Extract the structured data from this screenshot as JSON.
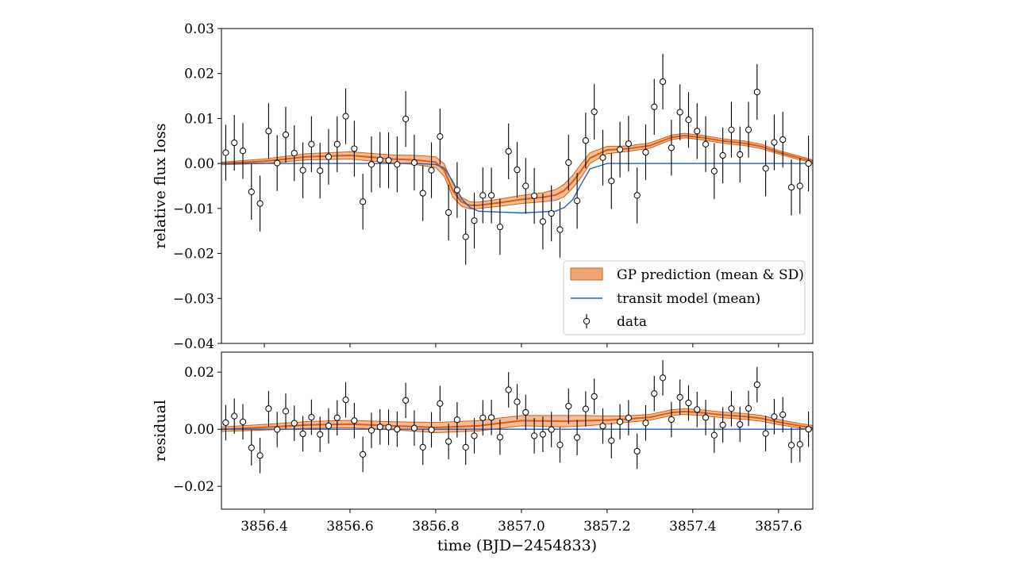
{
  "chart_data": [
    {
      "type": "scatter",
      "panel": "top",
      "ylabel": "relative flux loss",
      "xlim": [
        3856.3,
        3857.68
      ],
      "ylim": [
        -0.04,
        0.03
      ],
      "yticks": [
        -0.04,
        -0.03,
        -0.02,
        -0.01,
        0.0,
        0.01,
        0.02,
        0.03
      ],
      "ytick_labels": [
        "−0.04",
        "−0.03",
        "−0.02",
        "−0.01",
        "0.00",
        "0.01",
        "0.02",
        "0.03"
      ],
      "grid": false,
      "legend_position": "lower-right",
      "legend": [
        "GP prediction (mean & SD)",
        "transit model (mean)",
        "data"
      ],
      "colors": {
        "gp_line": "#d95f0e",
        "gp_band": "#f0a474",
        "transit": "#1f5fbf",
        "data": "#000000"
      },
      "series": [
        {
          "name": "data",
          "error": 0.0062,
          "x": [
            3856.31,
            3856.33,
            3856.35,
            3856.37,
            3856.39,
            3856.41,
            3856.43,
            3856.45,
            3856.47,
            3856.49,
            3856.51,
            3856.53,
            3856.55,
            3856.57,
            3856.59,
            3856.61,
            3856.63,
            3856.65,
            3856.67,
            3856.69,
            3856.71,
            3856.73,
            3856.75,
            3856.77,
            3856.79,
            3856.81,
            3856.83,
            3856.85,
            3856.87,
            3856.89,
            3856.91,
            3856.93,
            3856.95,
            3856.97,
            3856.99,
            3857.01,
            3857.03,
            3857.05,
            3857.07,
            3857.09,
            3857.11,
            3857.13,
            3857.15,
            3857.17,
            3857.19,
            3857.21,
            3857.23,
            3857.25,
            3857.27,
            3857.29,
            3857.31,
            3857.33,
            3857.35,
            3857.37,
            3857.39,
            3857.41,
            3857.43,
            3857.45,
            3857.47,
            3857.49,
            3857.51,
            3857.53,
            3857.55,
            3857.57,
            3857.59,
            3857.61,
            3857.63,
            3857.65,
            3857.67
          ],
          "values": [
            0.0024,
            0.0046,
            0.0028,
            -0.0063,
            -0.0089,
            0.0072,
            0.0001,
            0.0064,
            0.0023,
            -0.0015,
            0.0043,
            -0.0016,
            0.0015,
            0.0043,
            0.0105,
            0.0033,
            -0.0085,
            -0.0002,
            0.0008,
            0.0007,
            -0.0002,
            0.0099,
            0.0002,
            -0.0066,
            -0.0015,
            0.006,
            -0.0109,
            -0.0059,
            -0.0163,
            -0.0127,
            -0.0071,
            -0.0071,
            -0.0141,
            0.0027,
            -0.0014,
            -0.005,
            -0.0072,
            -0.0129,
            -0.0111,
            -0.0147,
            0.0002,
            -0.0083,
            0.0051,
            0.0115,
            0.0013,
            -0.0039,
            0.0031,
            0.0044,
            -0.0071,
            0.0025,
            0.0126,
            0.0182,
            0.0035,
            0.0114,
            0.0097,
            0.0072,
            0.0043,
            -0.0017,
            0.0018,
            0.0075,
            0.002,
            0.0075,
            0.0159,
            -0.0011,
            0.0047,
            0.0053,
            -0.0053,
            -0.005,
            0.0
          ]
        },
        {
          "name": "transit model (mean)",
          "x": [
            3856.3,
            3856.75,
            3856.8,
            3856.82,
            3856.84,
            3856.86,
            3856.88,
            3856.9,
            3857.0,
            3857.08,
            3857.1,
            3857.12,
            3857.14,
            3857.16,
            3857.2,
            3857.68
          ],
          "values": [
            0.0,
            0.0,
            -0.0002,
            -0.001,
            -0.004,
            -0.0078,
            -0.0098,
            -0.0106,
            -0.011,
            -0.0106,
            -0.0098,
            -0.008,
            -0.0045,
            -0.0012,
            0.0,
            0.0
          ]
        },
        {
          "name": "GP prediction (mean & SD)",
          "x": [
            3856.3,
            3856.4,
            3856.5,
            3856.6,
            3856.7,
            3856.75,
            3856.8,
            3856.82,
            3856.84,
            3856.86,
            3856.88,
            3856.9,
            3856.95,
            3857.0,
            3857.05,
            3857.08,
            3857.1,
            3857.12,
            3857.14,
            3857.16,
            3857.2,
            3857.25,
            3857.3,
            3857.35,
            3857.38,
            3857.42,
            3857.47,
            3857.52,
            3857.56,
            3857.6,
            3857.65,
            3857.68
          ],
          "values": [
            0.0,
            0.0005,
            0.0015,
            0.0018,
            0.001,
            0.0008,
            0.0003,
            -0.0015,
            -0.006,
            -0.0085,
            -0.0093,
            -0.0093,
            -0.0087,
            -0.008,
            -0.0075,
            -0.007,
            -0.006,
            -0.004,
            -0.0015,
            0.0012,
            0.003,
            0.0033,
            0.004,
            0.0058,
            0.0062,
            0.0058,
            0.005,
            0.0045,
            0.0038,
            0.0025,
            0.0012,
            0.0005
          ],
          "sd": [
            0.0003,
            0.0005,
            0.0007,
            0.0008,
            0.0009,
            0.001,
            0.0012,
            0.0014,
            0.0015,
            0.001,
            0.0008,
            0.0007,
            0.0008,
            0.0009,
            0.001,
            0.0012,
            0.0014,
            0.0014,
            0.0015,
            0.0012,
            0.0008,
            0.0006,
            0.0006,
            0.0005,
            0.0005,
            0.0005,
            0.0005,
            0.0005,
            0.0005,
            0.0004,
            0.0004,
            0.0003
          ]
        }
      ]
    },
    {
      "type": "scatter",
      "panel": "bottom",
      "ylabel": "residual",
      "xlabel": "time (BJD−2454833)",
      "xlim": [
        3856.3,
        3857.68
      ],
      "ylim": [
        -0.028,
        0.027
      ],
      "yticks": [
        -0.02,
        0.0,
        0.02
      ],
      "ytick_labels": [
        "−0.02",
        "0.00",
        "0.02"
      ],
      "xticks": [
        3856.4,
        3856.6,
        3856.8,
        3857.0,
        3857.2,
        3857.4,
        3857.6
      ],
      "xtick_labels": [
        "3856.4",
        "3856.6",
        "3856.8",
        "3857.0",
        "3857.2",
        "3857.4",
        "3857.6"
      ],
      "grid": false,
      "series": [
        {
          "name": "data",
          "error": 0.0062,
          "x": [
            3856.31,
            3856.33,
            3856.35,
            3856.37,
            3856.39,
            3856.41,
            3856.43,
            3856.45,
            3856.47,
            3856.49,
            3856.51,
            3856.53,
            3856.55,
            3856.57,
            3856.59,
            3856.61,
            3856.63,
            3856.65,
            3856.67,
            3856.69,
            3856.71,
            3856.73,
            3856.75,
            3856.77,
            3856.79,
            3856.81,
            3856.83,
            3856.85,
            3856.87,
            3856.89,
            3856.91,
            3856.93,
            3856.95,
            3856.97,
            3856.99,
            3857.01,
            3857.03,
            3857.05,
            3857.07,
            3857.09,
            3857.11,
            3857.13,
            3857.15,
            3857.17,
            3857.19,
            3857.21,
            3857.23,
            3857.25,
            3857.27,
            3857.29,
            3857.31,
            3857.33,
            3857.35,
            3857.37,
            3857.39,
            3857.41,
            3857.43,
            3857.45,
            3857.47,
            3857.49,
            3857.51,
            3857.53,
            3857.55,
            3857.57,
            3857.59,
            3857.61,
            3857.63,
            3857.65,
            3857.67
          ],
          "values": [
            0.0023,
            0.0046,
            0.0026,
            -0.0065,
            -0.0092,
            0.0072,
            -0.0001,
            0.0063,
            0.0021,
            -0.0016,
            0.0042,
            -0.0018,
            0.0012,
            0.004,
            0.0103,
            0.003,
            -0.0088,
            -0.0004,
            0.0008,
            0.0007,
            0.0,
            0.0101,
            0.0004,
            -0.0063,
            -0.0002,
            0.009,
            -0.0043,
            0.0033,
            -0.0063,
            -0.0023,
            0.004,
            0.0041,
            -0.0028,
            0.0138,
            0.0096,
            0.0059,
            -0.0023,
            -0.0018,
            -0.0001,
            -0.0055,
            0.0081,
            -0.0029,
            0.0071,
            0.0115,
            0.0011,
            -0.004,
            0.0026,
            0.004,
            -0.0077,
            0.0022,
            0.0125,
            0.018,
            0.0034,
            0.0112,
            0.0092,
            0.0069,
            0.0041,
            -0.0021,
            0.0015,
            0.0072,
            0.0017,
            0.0073,
            0.0156,
            -0.0015,
            0.0044,
            0.0051,
            -0.0056,
            -0.0053,
            0.0
          ]
        },
        {
          "name": "transit model (mean)",
          "x": [
            3856.3,
            3857.68
          ],
          "values": [
            0.0,
            0.0
          ]
        },
        {
          "name": "GP prediction (mean & SD)",
          "x": [
            3856.3,
            3856.4,
            3856.5,
            3856.6,
            3856.7,
            3856.8,
            3856.9,
            3857.0,
            3857.1,
            3857.15,
            3857.2,
            3857.25,
            3857.3,
            3857.35,
            3857.38,
            3857.42,
            3857.47,
            3857.52,
            3857.56,
            3857.6,
            3857.65,
            3857.68
          ],
          "values": [
            0.0,
            0.0007,
            0.0015,
            0.0018,
            0.0012,
            0.0006,
            0.0012,
            0.003,
            0.0028,
            0.003,
            0.0032,
            0.0036,
            0.0042,
            0.0058,
            0.0062,
            0.0058,
            0.005,
            0.0045,
            0.0038,
            0.0025,
            0.0012,
            0.0005
          ],
          "sd": [
            0.0008,
            0.001,
            0.0012,
            0.0013,
            0.0014,
            0.0018,
            0.0018,
            0.0018,
            0.002,
            0.0018,
            0.0014,
            0.0011,
            0.001,
            0.001,
            0.001,
            0.001,
            0.001,
            0.001,
            0.001,
            0.0009,
            0.0008,
            0.0008
          ]
        }
      ]
    }
  ]
}
